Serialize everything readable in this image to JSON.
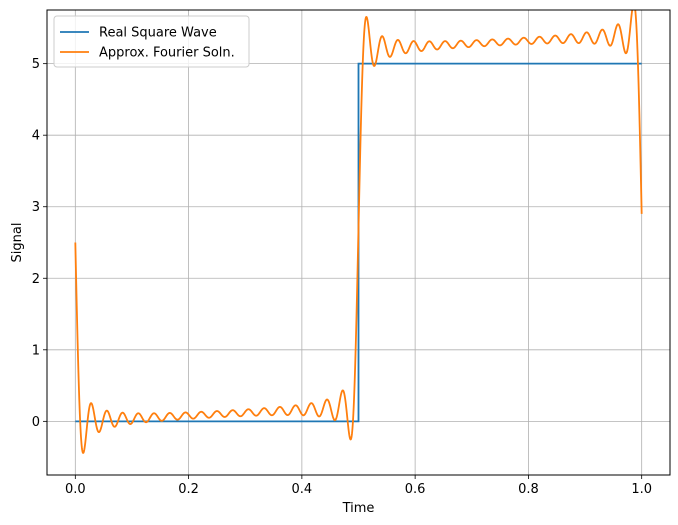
{
  "chart_data": {
    "type": "line",
    "xlabel": "Time",
    "ylabel": "Signal",
    "xlim": [
      -0.05,
      1.05
    ],
    "ylim": [
      -0.75,
      5.75
    ],
    "xticks": [
      0.0,
      0.2,
      0.4,
      0.6,
      0.8,
      1.0
    ],
    "xtick_labels": [
      "0.0",
      "0.2",
      "0.4",
      "0.6",
      "0.8",
      "1.0"
    ],
    "yticks": [
      0,
      1,
      2,
      3,
      4,
      5
    ],
    "ytick_labels": [
      "0",
      "1",
      "2",
      "3",
      "4",
      "5"
    ],
    "grid": true,
    "legend_position": "top-left",
    "series": [
      {
        "name": "Real Square Wave",
        "color": "#1f77b4",
        "x": [
          0.0,
          0.5,
          0.5,
          1.0
        ],
        "y": [
          0,
          0,
          5,
          5
        ]
      },
      {
        "name": "Approx. Fourier Soln.",
        "color": "#ff7f0e",
        "function": "fourier_square_wave_partial_sum",
        "amplitude": 5,
        "start_value": 2.5,
        "end_value": 2.9
      }
    ]
  }
}
